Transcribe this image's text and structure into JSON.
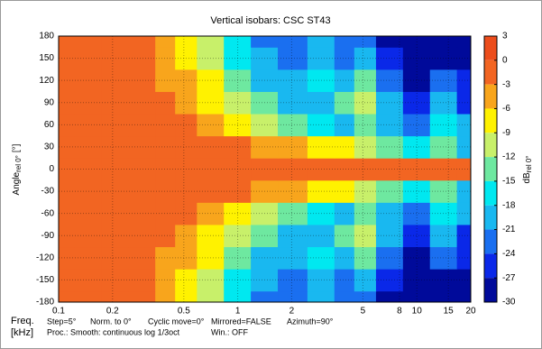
{
  "chart_data": {
    "type": "contour",
    "title": "Vertical isobars: CSC  ST43",
    "y_label": {
      "text": "Angle",
      "sub": "rel 0°",
      "unit": "[°]"
    },
    "colorbar_label": {
      "text": "dB",
      "sub": "rel 0°"
    },
    "footer": {
      "line1": [
        "Freq.",
        "Step=5°",
        "Norm. to 0°",
        "Cyclic move=0°",
        "Mirrored=FALSE",
        "Azimuth=90°"
      ],
      "line2": [
        "[kHz]",
        "Proc.: Smooth: continuous log 1/3oct",
        "Win.: OFF"
      ]
    },
    "x_log": true,
    "grid": true,
    "xlim": [
      0.1,
      20
    ],
    "xticks": [
      0.1,
      0.2,
      0.5,
      1,
      2,
      5,
      8,
      10,
      15,
      20
    ],
    "ylim": [
      -180,
      180
    ],
    "yticks": [
      -180,
      -150,
      -120,
      -90,
      -60,
      -30,
      0,
      30,
      60,
      90,
      120,
      150,
      180
    ],
    "levels": [
      3,
      0,
      -3,
      -6,
      -9,
      -12,
      -15,
      -18,
      -21,
      -24,
      -27,
      -30
    ],
    "colors": [
      "#ec4d1c",
      "#f26522",
      "#f8a51c",
      "#fff200",
      "#c8f06a",
      "#6ee8a0",
      "#00e8f0",
      "#19b8f0",
      "#1a6ff0",
      "#0a28e8",
      "#000a9a"
    ],
    "x": [
      0.1,
      0.15,
      0.2,
      0.3,
      0.4,
      0.5,
      0.7,
      1,
      1.4,
      2,
      3,
      4,
      5,
      7,
      10,
      14,
      20
    ],
    "y": [
      -180,
      -150,
      -120,
      -90,
      -60,
      -30,
      0,
      30,
      60,
      90,
      120,
      150,
      180
    ],
    "z": [
      [
        -1,
        -1,
        -1,
        -2,
        -4,
        -7,
        -11,
        -16,
        -21,
        -22,
        -20,
        -22,
        -22,
        -27,
        -28,
        -29,
        -28
      ],
      [
        -1,
        -1,
        -1,
        -2,
        -4,
        -6,
        -10,
        -15,
        -20,
        -22,
        -18,
        -21,
        -18,
        -26,
        -28,
        -27,
        -28
      ],
      [
        -1,
        -1,
        -1,
        -2,
        -3,
        -5,
        -8,
        -13,
        -18,
        -20,
        -16,
        -20,
        -14,
        -22,
        -27,
        -22,
        -26
      ],
      [
        -1,
        -1,
        -1,
        -2,
        -2,
        -4,
        -6,
        -10,
        -14,
        -18,
        -20,
        -14,
        -10,
        -20,
        -24,
        -20,
        -24
      ],
      [
        -1,
        -1,
        -1,
        -1,
        -2,
        -2,
        -4,
        -7,
        -10,
        -13,
        -16,
        -18,
        -14,
        -20,
        -22,
        -17,
        -20
      ],
      [
        -1,
        -1,
        -1,
        -1,
        -1,
        -1,
        -2,
        -2,
        -3,
        -4,
        -6,
        -8,
        -10,
        -12,
        -16,
        -14,
        -18
      ],
      [
        -1,
        -1,
        -1,
        -1,
        -1,
        -1,
        -1,
        -1,
        -1,
        -1,
        -1,
        -1,
        -1,
        -1,
        -1,
        -1,
        -1
      ],
      [
        -1,
        -1,
        -1,
        -1,
        -1,
        -1,
        -2,
        -2,
        -3,
        -4,
        -6,
        -8,
        -10,
        -12,
        -16,
        -14,
        -18
      ],
      [
        -1,
        -1,
        -1,
        -1,
        -2,
        -2,
        -4,
        -7,
        -10,
        -13,
        -16,
        -18,
        -14,
        -20,
        -22,
        -17,
        -20
      ],
      [
        -1,
        -1,
        -1,
        -2,
        -2,
        -4,
        -6,
        -10,
        -14,
        -18,
        -20,
        -14,
        -10,
        -20,
        -24,
        -20,
        -24
      ],
      [
        -1,
        -1,
        -1,
        -2,
        -3,
        -5,
        -8,
        -13,
        -18,
        -20,
        -16,
        -20,
        -14,
        -22,
        -27,
        -22,
        -26
      ],
      [
        -1,
        -1,
        -1,
        -2,
        -4,
        -6,
        -10,
        -15,
        -20,
        -22,
        -18,
        -21,
        -18,
        -26,
        -28,
        -27,
        -28
      ],
      [
        -1,
        -1,
        -1,
        -2,
        -4,
        -7,
        -11,
        -16,
        -21,
        -22,
        -20,
        -22,
        -22,
        -27,
        -28,
        -29,
        -28
      ]
    ]
  }
}
